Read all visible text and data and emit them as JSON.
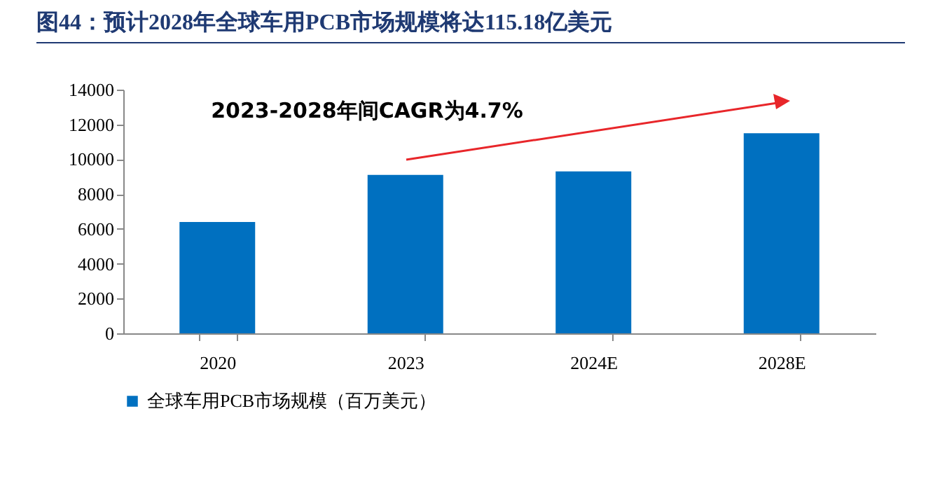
{
  "chart_data": {
    "type": "bar",
    "title": "图44：预计2028年全球车用PCB市场规模将达115.18亿美元",
    "categories": [
      "2020",
      "2023",
      "2024E",
      "2028E"
    ],
    "series": [
      {
        "name": "全球车用PCB市场规模（百万美元）",
        "color": "#0070c0",
        "values": [
          6400,
          9100,
          9300,
          11500
        ]
      }
    ],
    "ylim": [
      0,
      14000
    ],
    "yticks": [
      0,
      2000,
      4000,
      6000,
      8000,
      10000,
      12000,
      14000
    ],
    "grid": false,
    "legend": "bottom",
    "annotations": [
      "2023-2028年间CAGR为4.7%"
    ]
  }
}
